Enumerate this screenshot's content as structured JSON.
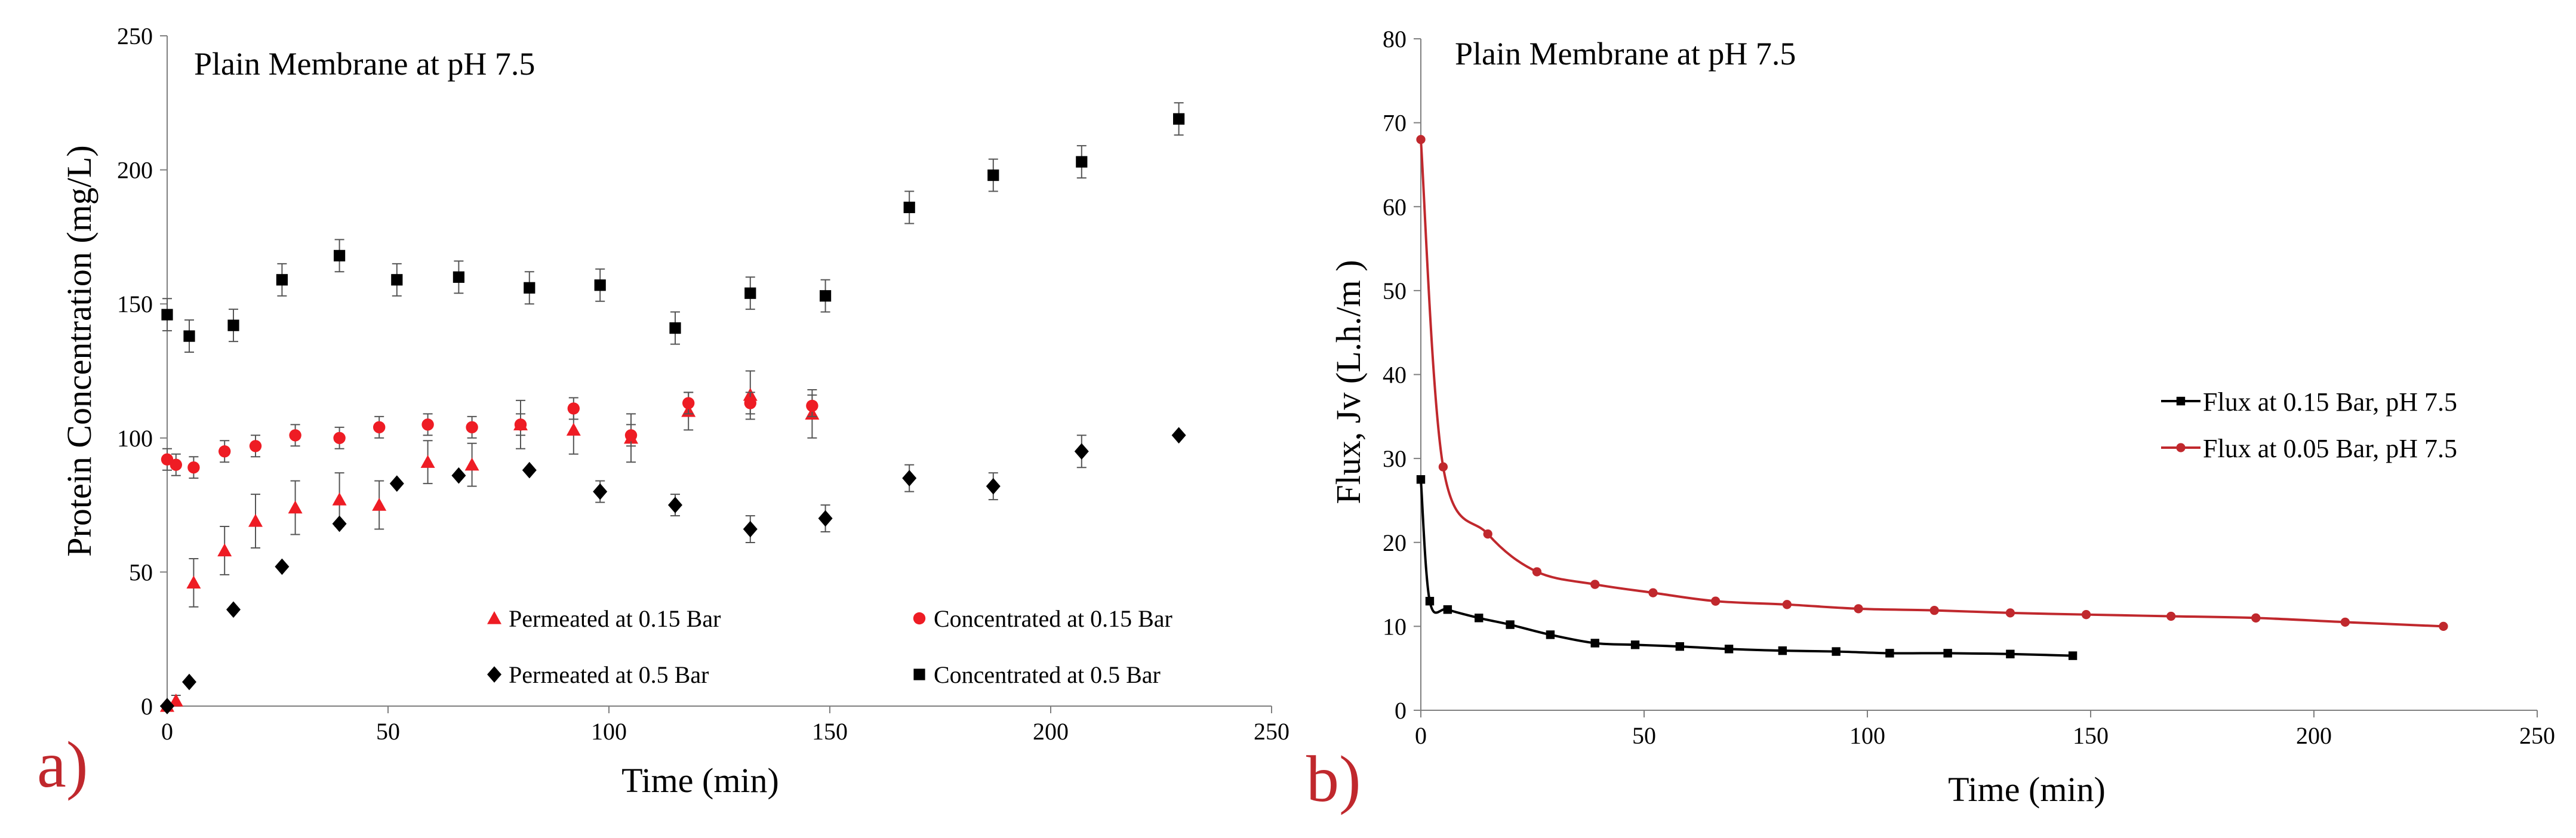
{
  "chart_data": [
    {
      "type": "scatter",
      "panel_label": "a)",
      "title": "Plain  Membrane at pH 7.5",
      "xlabel": "Time (min)",
      "ylabel": "Protein Concentration (mg/L)",
      "xlim": [
        0,
        250
      ],
      "ylim": [
        0,
        250
      ],
      "xticks": [
        "0",
        "50",
        "100",
        "150",
        "200",
        "250"
      ],
      "yticks": [
        "0",
        "50",
        "100",
        "150",
        "200",
        "250"
      ],
      "legend_position": "bottom",
      "series": [
        {
          "name": "Permeated at 0.15 Bar",
          "marker": "triangle",
          "color": "#ee1c24",
          "x": [
            0,
            2,
            6,
            13,
            20,
            29,
            39,
            48,
            59,
            69,
            80,
            92,
            105,
            118,
            132,
            146
          ],
          "y": [
            0,
            2,
            46,
            58,
            69,
            74,
            77,
            75,
            91,
            90,
            105,
            103,
            100,
            110,
            116,
            109
          ],
          "err": [
            0,
            2,
            9,
            9,
            10,
            10,
            10,
            9,
            8,
            8,
            9,
            9,
            9,
            7,
            9,
            9
          ]
        },
        {
          "name": "Concentrated at 0.15 Bar",
          "marker": "circle",
          "color": "#ee1c24",
          "x": [
            0,
            2,
            6,
            13,
            20,
            29,
            39,
            48,
            59,
            69,
            80,
            92,
            105,
            118,
            132,
            146
          ],
          "y": [
            92,
            90,
            89,
            95,
            97,
            101,
            100,
            104,
            105,
            104,
            105,
            111,
            101,
            113,
            113,
            112
          ],
          "err": [
            4,
            4,
            4,
            4,
            4,
            4,
            4,
            4,
            4,
            4,
            4,
            4,
            4,
            4,
            4,
            4
          ]
        },
        {
          "name": "Permeated at 0.5 Bar",
          "marker": "diamond",
          "color": "#000000",
          "x": [
            0,
            5,
            15,
            26,
            39,
            52,
            66,
            82,
            98,
            115,
            132,
            149,
            168,
            187,
            207,
            229
          ],
          "y": [
            0,
            9,
            36,
            52,
            68,
            83,
            86,
            88,
            80,
            75,
            66,
            70,
            85,
            82,
            95,
            101
          ],
          "err": [
            0,
            0,
            0,
            0,
            0,
            0,
            0,
            0,
            4,
            4,
            5,
            5,
            5,
            5,
            6,
            0
          ]
        },
        {
          "name": "Concentrated at 0.5 Bar",
          "marker": "square",
          "color": "#000000",
          "x": [
            0,
            5,
            15,
            26,
            39,
            52,
            66,
            82,
            98,
            115,
            132,
            149,
            168,
            187,
            207,
            229
          ],
          "y": [
            146,
            138,
            142,
            159,
            168,
            159,
            160,
            156,
            157,
            141,
            154,
            153,
            186,
            198,
            203,
            219
          ],
          "err": [
            6,
            6,
            6,
            6,
            6,
            6,
            6,
            6,
            6,
            6,
            6,
            6,
            6,
            6,
            6,
            6
          ]
        }
      ]
    },
    {
      "type": "line",
      "panel_label": "b)",
      "title": "Plain  Membrane at pH 7.5",
      "xlabel": "Time (min)",
      "ylabel": "Flux,  Jv  (L.h./m     )",
      "xlim": [
        0,
        250
      ],
      "ylim": [
        0,
        80
      ],
      "xticks": [
        "0",
        "50",
        "100",
        "150",
        "200",
        "250"
      ],
      "yticks": [
        "0",
        "10",
        "20",
        "30",
        "40",
        "50",
        "60",
        "70",
        "80"
      ],
      "legend_position": "right",
      "series": [
        {
          "name": "Flux at 0.15 Bar, pH 7.5",
          "marker": "square",
          "color": "#000000",
          "x": [
            0,
            2,
            6,
            13,
            20,
            29,
            39,
            48,
            58,
            69,
            81,
            93,
            105,
            118,
            132,
            146
          ],
          "y": [
            27.5,
            13,
            12,
            11,
            10.2,
            9,
            8,
            7.8,
            7.6,
            7.3,
            7.1,
            7.0,
            6.8,
            6.8,
            6.7,
            6.5
          ]
        },
        {
          "name": "Flux at 0.05 Bar, pH 7.5",
          "marker": "circle",
          "color": "#c0282d",
          "x": [
            0,
            5,
            15,
            26,
            39,
            52,
            66,
            82,
            98,
            115,
            132,
            149,
            168,
            187,
            207,
            229
          ],
          "y": [
            68,
            29,
            21,
            16.5,
            15,
            14,
            13,
            12.6,
            12.1,
            11.9,
            11.6,
            11.4,
            11.2,
            11.0,
            10.5,
            10.0
          ]
        }
      ]
    }
  ]
}
